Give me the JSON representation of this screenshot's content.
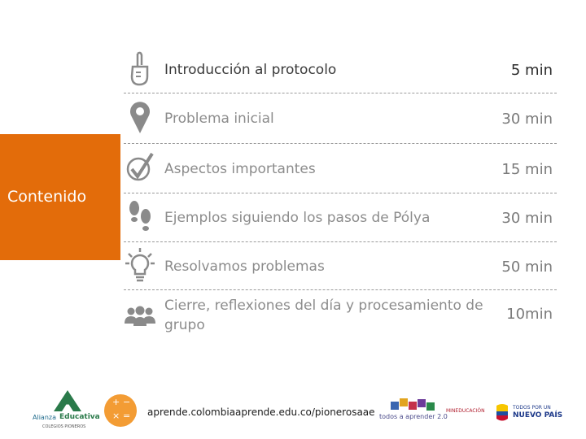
{
  "side": {
    "label": "Contenido"
  },
  "agenda": [
    {
      "label": "Introducción al protocolo",
      "time": "5 min",
      "icon": "hand-pointing-icon"
    },
    {
      "label": "Problema inicial",
      "time": "30 min",
      "icon": "map-pin-icon"
    },
    {
      "label": "Aspectos importantes",
      "time": "15 min",
      "icon": "checkmark-circle-icon"
    },
    {
      "label": "Ejemplos siguiendo los pasos de Pólya",
      "time": "30 min",
      "icon": "footprints-icon"
    },
    {
      "label": "Resolvamos problemas",
      "time": "50 min",
      "icon": "lightbulb-icon"
    },
    {
      "label": "Cierre, reflexiones del día y procesamiento de grupo",
      "time": "10min",
      "icon": "group-icon"
    }
  ],
  "footer": {
    "url": "aprende.colombiaaprende.edu.co/pionerosaae",
    "alianza_line1": "Alianza",
    "alianza_line2": "Educativa",
    "alianza_sub": "COLEGIOS PIONEROS",
    "todos": "todos a aprender 2.0",
    "mineducacion": "MINEDUCACIÓN",
    "gov_line1": "TODOS POR UN",
    "gov_line2": "NUEVO PAÍS",
    "math_symbols": [
      "+",
      "−",
      "×",
      "="
    ]
  },
  "colors": {
    "accent": "#e36c0a",
    "icon_gray": "#8a8a8a"
  }
}
